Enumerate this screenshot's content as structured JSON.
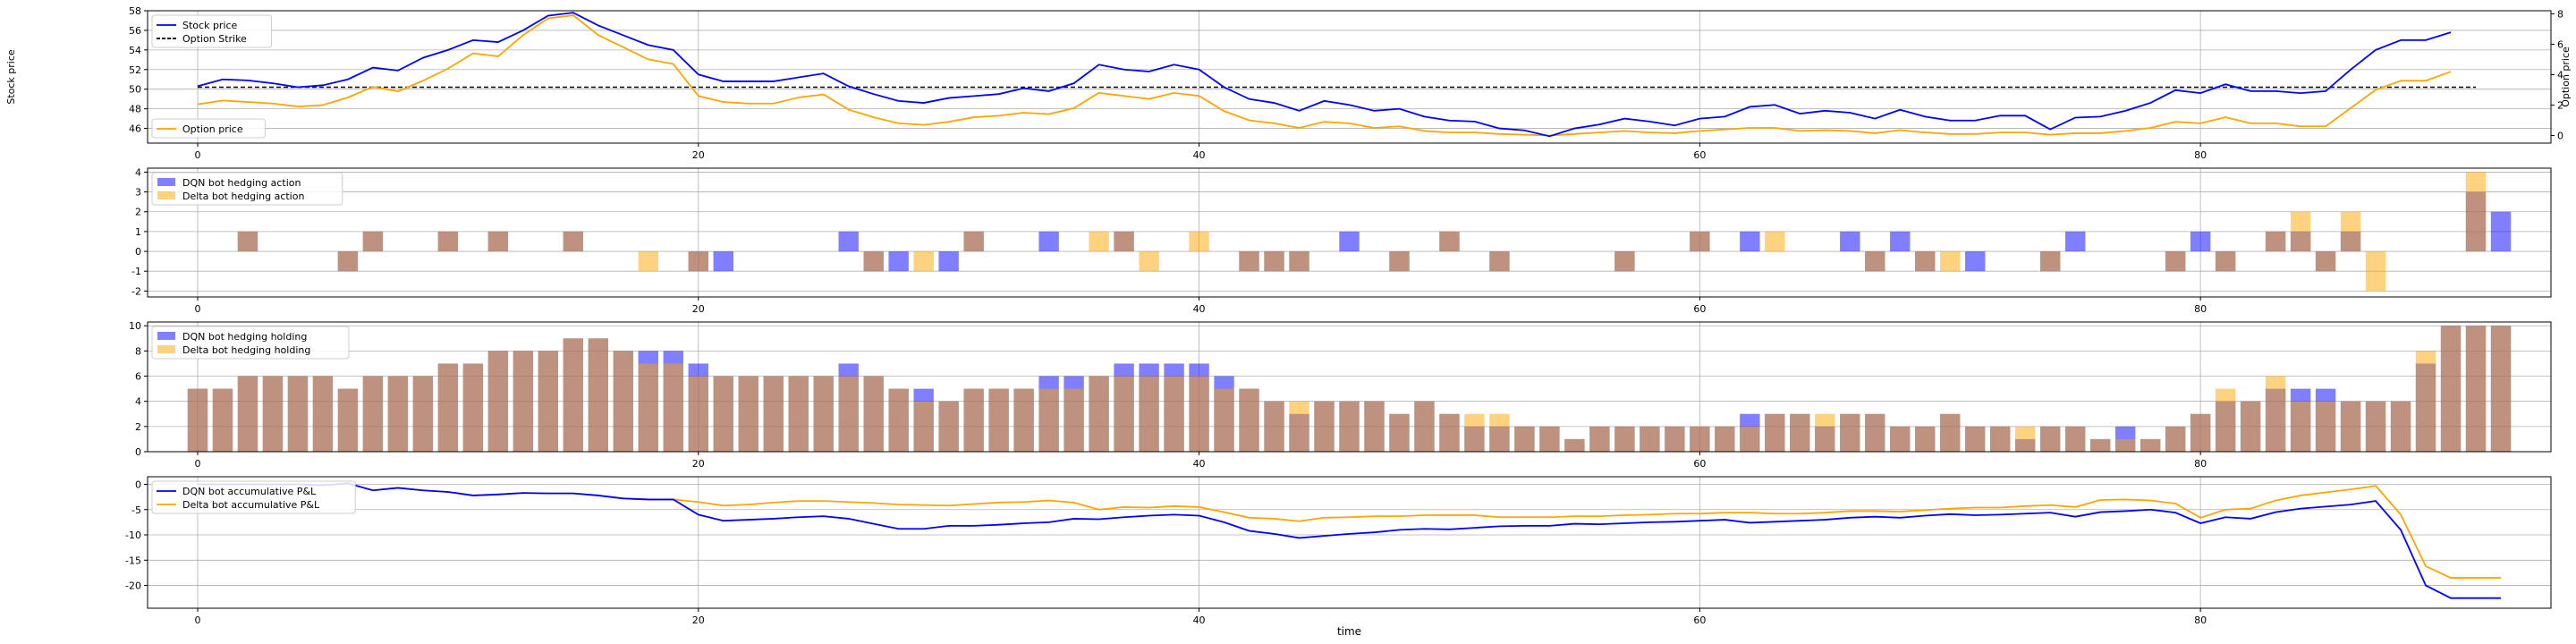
{
  "xlabel": "time",
  "colors": {
    "dqn": "#0000ff",
    "delta": "#ffa500",
    "strike": "#000000",
    "overlap": "#c0907a",
    "grid": "#b0b0b0"
  },
  "chart_data": [
    {
      "id": "stock-option",
      "type": "line",
      "ylabel": "Stock price",
      "y2label": "Option price",
      "xlim": [
        -2,
        94
      ],
      "ylim": [
        44.5,
        58
      ],
      "y2lim": [
        -0.5,
        8.2
      ],
      "xticks": [
        0,
        20,
        40,
        60,
        80
      ],
      "yticks": [
        46,
        48,
        50,
        52,
        54,
        56,
        58
      ],
      "y2ticks": [
        0,
        2,
        4,
        6,
        8
      ],
      "grid": true,
      "legend": [
        {
          "label": "Stock price",
          "style": "solid",
          "color": "#0000ff",
          "placement": "upper left"
        },
        {
          "label": "Option Strike",
          "style": "dashed",
          "color": "#000000",
          "placement": "upper left"
        },
        {
          "label": "Option price",
          "style": "solid",
          "color": "#ffa500",
          "placement": "lower left"
        }
      ],
      "strike": 50.2,
      "stock": [
        50.3,
        51,
        50.9,
        50.6,
        50.2,
        50.4,
        51,
        52.2,
        51.9,
        53.2,
        54,
        55,
        54.8,
        56,
        57.5,
        57.8,
        56.5,
        55.5,
        54.5,
        54,
        51.5,
        50.8,
        50.8,
        50.8,
        51.2,
        51.6,
        50.3,
        49.5,
        48.8,
        48.6,
        49.1,
        49.3,
        49.5,
        50.1,
        49.8,
        50.6,
        52.5,
        52,
        51.8,
        52.5,
        52,
        50.2,
        49,
        48.6,
        47.8,
        48.8,
        48.4,
        47.8,
        48,
        47.2,
        46.8,
        46.7,
        46,
        45.8,
        45.2,
        46,
        46.4,
        47,
        46.7,
        46.3,
        47,
        47.2,
        48.2,
        48.4,
        47.5,
        47.8,
        47.6,
        47,
        47.9,
        47.2,
        46.8,
        46.8,
        47.3,
        47.3,
        45.9,
        47.1,
        47.2,
        47.8,
        48.6,
        49.9,
        49.6,
        50.5,
        49.8,
        49.8,
        49.6,
        49.8,
        52,
        54,
        55,
        55,
        55.8
      ],
      "option": [
        2.05,
        2.3,
        2.2,
        2.1,
        1.9,
        2,
        2.5,
        3.2,
        2.9,
        3.6,
        4.4,
        5.4,
        5.2,
        6.6,
        7.7,
        7.9,
        6.6,
        5.8,
        5,
        4.7,
        2.6,
        2.2,
        2.1,
        2.1,
        2.5,
        2.7,
        1.7,
        1.2,
        0.8,
        0.7,
        0.9,
        1.2,
        1.3,
        1.5,
        1.4,
        1.8,
        2.8,
        2.6,
        2.4,
        2.8,
        2.6,
        1.6,
        1,
        0.8,
        0.5,
        0.9,
        0.8,
        0.5,
        0.6,
        0.3,
        0.2,
        0.2,
        0.1,
        0.05,
        0,
        0.1,
        0.2,
        0.3,
        0.2,
        0.15,
        0.3,
        0.4,
        0.5,
        0.5,
        0.3,
        0.35,
        0.3,
        0.15,
        0.35,
        0.2,
        0.1,
        0.1,
        0.2,
        0.2,
        0.05,
        0.15,
        0.15,
        0.3,
        0.5,
        0.9,
        0.8,
        1.2,
        0.8,
        0.8,
        0.6,
        0.6,
        1.8,
        3,
        3.6,
        3.6,
        4.2
      ]
    },
    {
      "id": "hedging-action",
      "type": "bar",
      "xlim": [
        -2,
        94
      ],
      "ylim": [
        -2.3,
        4.2
      ],
      "xticks": [
        0,
        20,
        40,
        60,
        80
      ],
      "yticks": [
        -2,
        -1,
        0,
        1,
        2,
        3,
        4
      ],
      "grid": true,
      "legend": [
        {
          "label": "DQN bot hedging action",
          "color": "#0000ff"
        },
        {
          "label": "Delta bot hedging action",
          "color": "#ffa500"
        }
      ],
      "dqn": [
        0,
        0,
        1,
        0,
        0,
        0,
        -1,
        1,
        0,
        0,
        1,
        0,
        1,
        0,
        0,
        1,
        0,
        0,
        0,
        0,
        -1,
        -1,
        0,
        0,
        0,
        0,
        1,
        -1,
        -1,
        0,
        -1,
        1,
        0,
        0,
        1,
        0,
        0,
        1,
        0,
        0,
        0,
        0,
        -1,
        -1,
        -1,
        0,
        1,
        0,
        -1,
        0,
        1,
        0,
        -1,
        0,
        0,
        0,
        0,
        -1,
        0,
        0,
        1,
        0,
        1,
        0,
        0,
        0,
        1,
        -1,
        1,
        -1,
        0,
        -1,
        0,
        0,
        -1,
        1,
        0,
        0,
        0,
        -1,
        1,
        -1,
        0,
        1,
        1,
        -1,
        1,
        0,
        0,
        0,
        0,
        3,
        2
      ],
      "delta": [
        0,
        0,
        1,
        0,
        0,
        0,
        -1,
        1,
        0,
        0,
        1,
        0,
        1,
        0,
        0,
        1,
        0,
        0,
        -1,
        0,
        -1,
        0,
        0,
        0,
        0,
        0,
        0,
        -1,
        0,
        -1,
        0,
        1,
        0,
        0,
        0,
        0,
        1,
        1,
        -1,
        0,
        1,
        0,
        -1,
        -1,
        -1,
        0,
        0,
        0,
        -1,
        0,
        1,
        0,
        -1,
        0,
        0,
        0,
        0,
        -1,
        0,
        0,
        1,
        0,
        0,
        1,
        0,
        0,
        0,
        -1,
        0,
        -1,
        -1,
        0,
        0,
        0,
        -1,
        0,
        0,
        0,
        0,
        -1,
        0,
        -1,
        0,
        1,
        2,
        -1,
        2,
        -2,
        0,
        0,
        0,
        4,
        0
      ]
    },
    {
      "id": "hedging-holding",
      "type": "bar",
      "xlim": [
        -2,
        94
      ],
      "ylim": [
        0,
        10.3
      ],
      "xticks": [
        0,
        20,
        40,
        60,
        80
      ],
      "yticks": [
        0,
        2,
        4,
        6,
        8,
        10
      ],
      "grid": true,
      "legend": [
        {
          "label": "DQN bot hedging holding",
          "color": "#0000ff"
        },
        {
          "label": "Delta bot hedging holding",
          "color": "#ffa500"
        }
      ],
      "dqn": [
        5,
        5,
        6,
        6,
        6,
        6,
        5,
        6,
        6,
        6,
        7,
        7,
        8,
        8,
        8,
        9,
        9,
        8,
        8,
        8,
        7,
        6,
        6,
        6,
        6,
        6,
        7,
        6,
        5,
        5,
        4,
        5,
        5,
        5,
        6,
        6,
        6,
        7,
        7,
        7,
        7,
        6,
        5,
        4,
        3,
        4,
        4,
        4,
        3,
        4,
        3,
        2,
        2,
        2,
        2,
        1,
        2,
        2,
        2,
        2,
        2,
        2,
        3,
        3,
        3,
        2,
        3,
        3,
        2,
        2,
        3,
        2,
        2,
        1,
        2,
        2,
        1,
        2,
        1,
        2,
        3,
        4,
        4,
        5,
        5,
        5,
        4,
        4,
        4,
        7,
        10,
        10,
        10
      ],
      "delta": [
        5,
        5,
        6,
        6,
        6,
        6,
        5,
        6,
        6,
        6,
        7,
        7,
        8,
        8,
        8,
        9,
        9,
        8,
        7,
        7,
        6,
        6,
        6,
        6,
        6,
        6,
        6,
        6,
        5,
        4,
        4,
        5,
        5,
        5,
        5,
        5,
        6,
        6,
        6,
        6,
        6,
        5,
        5,
        4,
        4,
        4,
        4,
        4,
        3,
        4,
        3,
        3,
        3,
        2,
        2,
        1,
        2,
        2,
        2,
        2,
        2,
        2,
        2,
        3,
        3,
        3,
        3,
        3,
        2,
        2,
        3,
        2,
        2,
        2,
        2,
        2,
        1,
        1,
        1,
        2,
        3,
        5,
        4,
        6,
        4,
        4,
        4,
        4,
        4,
        8,
        10,
        10,
        10
      ]
    },
    {
      "id": "pnl",
      "type": "line",
      "xlabel": "time",
      "xlim": [
        -2,
        94
      ],
      "ylim": [
        -24.5,
        1.5
      ],
      "xticks": [
        0,
        20,
        40,
        60,
        80
      ],
      "yticks": [
        0,
        -5,
        -10,
        -15,
        -20
      ],
      "grid": true,
      "legend": [
        {
          "label": "DQN bot accumulative P&L",
          "color": "#0000ff"
        },
        {
          "label": "Delta bot accumulative P&L",
          "color": "#ffa500"
        }
      ],
      "dqn": [
        0,
        0,
        0,
        0,
        0,
        -0.2,
        0.2,
        -1.2,
        -0.7,
        -1.2,
        -1.5,
        -2.2,
        -2,
        -1.7,
        -1.8,
        -1.8,
        -2.2,
        -2.8,
        -3,
        -3,
        -6,
        -7.2,
        -7,
        -6.8,
        -6.5,
        -6.3,
        -6.8,
        -7.8,
        -8.8,
        -8.8,
        -8.2,
        -8.2,
        -8,
        -7.7,
        -7.5,
        -6.8,
        -6.9,
        -6.5,
        -6.2,
        -6,
        -6.2,
        -7.5,
        -9.2,
        -9.8,
        -10.6,
        -10.2,
        -9.8,
        -9.5,
        -9,
        -8.8,
        -8.9,
        -8.6,
        -8.3,
        -8.2,
        -8.2,
        -7.8,
        -7.9,
        -7.7,
        -7.5,
        -7.4,
        -7.2,
        -7,
        -7.6,
        -7.4,
        -7.2,
        -7,
        -6.6,
        -6.4,
        -6.6,
        -6.2,
        -5.9,
        -6.1,
        -6,
        -5.8,
        -5.6,
        -6.4,
        -5.5,
        -5.3,
        -5,
        -5.6,
        -7.7,
        -6.5,
        -6.8,
        -5.5,
        -4.8,
        -4.4,
        -4,
        -3.3,
        -9,
        -20,
        -22.5,
        -22.5,
        -22.5
      ],
      "delta": [
        0,
        0,
        0,
        0,
        0,
        -0.2,
        0.2,
        -1.2,
        -0.7,
        -1.2,
        -1.5,
        -2.2,
        -2,
        -1.7,
        -1.8,
        -1.8,
        -2.2,
        -2.8,
        -3,
        -3,
        -3.5,
        -4.2,
        -4,
        -3.6,
        -3.3,
        -3.3,
        -3.5,
        -3.7,
        -4,
        -4.1,
        -4.2,
        -3.9,
        -3.6,
        -3.5,
        -3.2,
        -3.6,
        -5,
        -4.5,
        -4.6,
        -4.3,
        -4.5,
        -5.5,
        -6.6,
        -6.8,
        -7.3,
        -6.6,
        -6.5,
        -6.3,
        -6.3,
        -6.1,
        -6.1,
        -6.1,
        -6.5,
        -6.5,
        -6.5,
        -6.3,
        -6.3,
        -6.1,
        -6,
        -5.8,
        -5.8,
        -5.6,
        -5.6,
        -5.8,
        -5.8,
        -5.6,
        -5.3,
        -5.3,
        -5.4,
        -5.1,
        -4.8,
        -4.6,
        -4.6,
        -4.3,
        -4.1,
        -4.5,
        -3.1,
        -3,
        -3.2,
        -3.8,
        -6.6,
        -5,
        -4.8,
        -3.2,
        -2.2,
        -1.6,
        -1,
        -0.3,
        -6,
        -16.2,
        -18.5,
        -18.5,
        -18.5
      ]
    }
  ]
}
